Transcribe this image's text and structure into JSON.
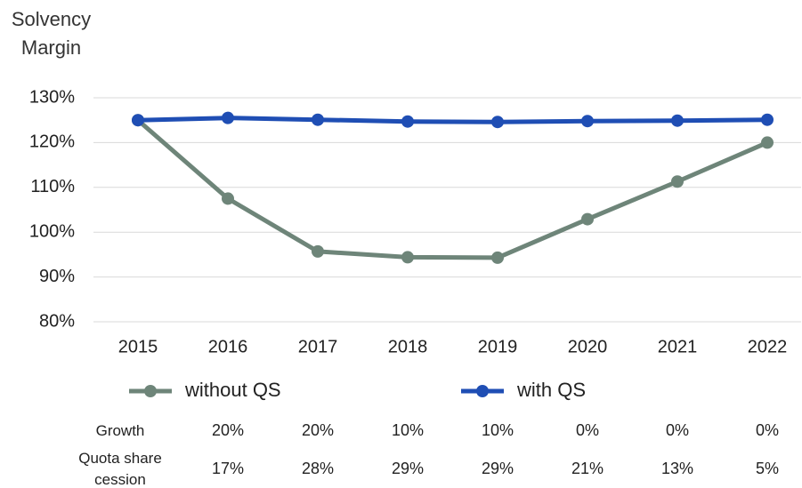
{
  "chart_data": {
    "type": "line",
    "ylabel": "Solvency Margin",
    "categories": [
      "2015",
      "2016",
      "2017",
      "2018",
      "2019",
      "2020",
      "2021",
      "2022"
    ],
    "series": [
      {
        "name": "without QS",
        "color": "#6e8579",
        "values": [
          125,
          107.5,
          95.7,
          94.4,
          94.3,
          102.9,
          111.3,
          120
        ]
      },
      {
        "name": "with QS",
        "color": "#1f4eb4",
        "values": [
          125,
          125.5,
          125.1,
          124.7,
          124.6,
          124.8,
          124.9,
          125.1
        ]
      }
    ],
    "ylim": [
      80,
      130
    ],
    "yticks": [
      {
        "value": 80,
        "label": "80%"
      },
      {
        "value": 90,
        "label": "90%"
      },
      {
        "value": 100,
        "label": "100%"
      },
      {
        "value": 110,
        "label": "110%"
      },
      {
        "value": 120,
        "label": "120%"
      },
      {
        "value": 130,
        "label": "130%"
      }
    ],
    "grid": true,
    "legend": "bottom",
    "table": [
      {
        "label": "Growth",
        "cells": [
          "20%",
          "20%",
          "10%",
          "10%",
          "0%",
          "0%",
          "0%"
        ]
      },
      {
        "label": "Quota share cession",
        "cells": [
          "17%",
          "28%",
          "29%",
          "29%",
          "21%",
          "13%",
          "5%"
        ]
      }
    ]
  }
}
